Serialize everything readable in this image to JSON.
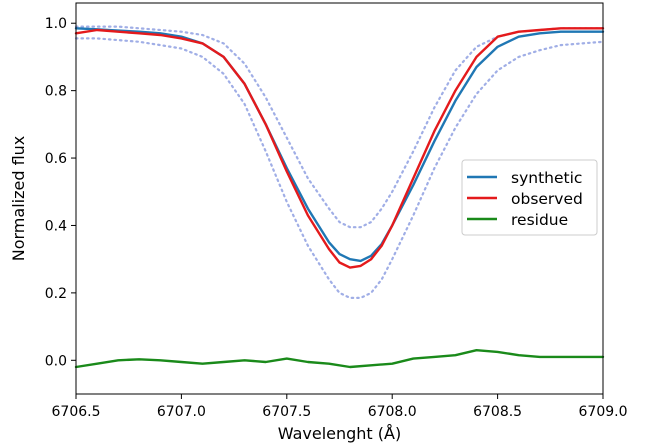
{
  "chart_data": {
    "type": "line",
    "xlabel": "Wavelenght (Å)",
    "ylabel": "Normalized flux",
    "xlim": [
      6706.5,
      6709.0
    ],
    "ylim": [
      -0.1,
      1.06
    ],
    "xticks": [
      6706.5,
      6707.0,
      6707.5,
      6708.0,
      6708.5,
      6709.0
    ],
    "xtick_labels": [
      "6706.5",
      "6707.0",
      "6707.5",
      "6708.0",
      "6708.5",
      "6709.0"
    ],
    "yticks": [
      0.0,
      0.2,
      0.4,
      0.6,
      0.8,
      1.0
    ],
    "ytick_labels": [
      "0.0",
      "0.2",
      "0.4",
      "0.6",
      "0.8",
      "1.0"
    ],
    "grid": false,
    "legend": {
      "position": "right",
      "entries": [
        {
          "label": "synthetic",
          "color": "#1f77b4"
        },
        {
          "label": "observed",
          "color": "#e41a1c"
        },
        {
          "label": "residue",
          "color": "#1a8a1a"
        }
      ]
    },
    "series": [
      {
        "name": "synthetic",
        "color": "#1f77b4",
        "style": "solid",
        "x": [
          6706.5,
          6706.6,
          6706.7,
          6706.8,
          6706.9,
          6707.0,
          6707.1,
          6707.2,
          6707.3,
          6707.4,
          6707.5,
          6707.6,
          6707.7,
          6707.75,
          6707.8,
          6707.85,
          6707.9,
          6707.95,
          6708.0,
          6708.1,
          6708.2,
          6708.3,
          6708.4,
          6708.5,
          6708.6,
          6708.7,
          6708.8,
          6708.9,
          6709.0
        ],
        "y": [
          0.985,
          0.982,
          0.978,
          0.975,
          0.97,
          0.96,
          0.94,
          0.9,
          0.82,
          0.7,
          0.57,
          0.45,
          0.35,
          0.315,
          0.3,
          0.295,
          0.31,
          0.345,
          0.4,
          0.52,
          0.65,
          0.77,
          0.87,
          0.93,
          0.96,
          0.97,
          0.975,
          0.975,
          0.975
        ]
      },
      {
        "name": "observed",
        "color": "#e41a1c",
        "style": "solid",
        "x": [
          6706.5,
          6706.6,
          6706.7,
          6706.8,
          6706.9,
          6707.0,
          6707.1,
          6707.2,
          6707.3,
          6707.4,
          6707.5,
          6707.6,
          6707.7,
          6707.75,
          6707.8,
          6707.85,
          6707.9,
          6707.95,
          6708.0,
          6708.1,
          6708.2,
          6708.3,
          6708.4,
          6708.5,
          6708.6,
          6708.7,
          6708.8,
          6708.9,
          6709.0
        ],
        "y": [
          0.97,
          0.98,
          0.975,
          0.97,
          0.965,
          0.955,
          0.94,
          0.9,
          0.82,
          0.7,
          0.56,
          0.43,
          0.33,
          0.29,
          0.275,
          0.28,
          0.3,
          0.34,
          0.4,
          0.54,
          0.68,
          0.8,
          0.9,
          0.96,
          0.975,
          0.98,
          0.985,
          0.985,
          0.985
        ]
      },
      {
        "name": "",
        "color": "#a0aee6",
        "style": "dotted",
        "x": [
          6706.5,
          6706.6,
          6706.7,
          6706.8,
          6706.9,
          6707.0,
          6707.1,
          6707.2,
          6707.3,
          6707.4,
          6707.5,
          6707.6,
          6707.7,
          6707.75,
          6707.8,
          6707.85,
          6707.9,
          6707.95,
          6708.0,
          6708.1,
          6708.2,
          6708.3,
          6708.4,
          6708.5,
          6708.6,
          6708.7,
          6708.8,
          6708.9,
          6709.0
        ],
        "y": [
          0.99,
          0.99,
          0.99,
          0.985,
          0.98,
          0.975,
          0.965,
          0.94,
          0.88,
          0.78,
          0.66,
          0.54,
          0.45,
          0.41,
          0.395,
          0.395,
          0.41,
          0.45,
          0.5,
          0.62,
          0.75,
          0.86,
          0.93,
          0.96,
          0.975,
          0.98,
          0.985,
          0.985,
          0.985
        ]
      },
      {
        "name": "",
        "color": "#a0aee6",
        "style": "dotted",
        "x": [
          6706.5,
          6706.6,
          6706.7,
          6706.8,
          6706.9,
          6707.0,
          6707.1,
          6707.2,
          6707.3,
          6707.4,
          6707.5,
          6707.6,
          6707.7,
          6707.75,
          6707.8,
          6707.85,
          6707.9,
          6707.95,
          6708.0,
          6708.1,
          6708.2,
          6708.3,
          6708.4,
          6708.5,
          6708.6,
          6708.7,
          6708.8,
          6708.9,
          6709.0
        ],
        "y": [
          0.955,
          0.955,
          0.95,
          0.945,
          0.935,
          0.925,
          0.9,
          0.85,
          0.76,
          0.62,
          0.47,
          0.34,
          0.24,
          0.2,
          0.185,
          0.185,
          0.2,
          0.24,
          0.3,
          0.43,
          0.57,
          0.69,
          0.79,
          0.86,
          0.9,
          0.92,
          0.935,
          0.94,
          0.945
        ]
      },
      {
        "name": "residue",
        "color": "#1a8a1a",
        "style": "solid",
        "x": [
          6706.5,
          6706.6,
          6706.7,
          6706.8,
          6706.9,
          6707.0,
          6707.1,
          6707.2,
          6707.3,
          6707.4,
          6707.5,
          6707.6,
          6707.7,
          6707.8,
          6707.9,
          6708.0,
          6708.1,
          6708.2,
          6708.3,
          6708.4,
          6708.5,
          6708.6,
          6708.7,
          6708.8,
          6708.9,
          6709.0
        ],
        "y": [
          -0.02,
          -0.01,
          0.0,
          0.003,
          0.0,
          -0.005,
          -0.01,
          -0.005,
          0.0,
          -0.005,
          0.005,
          -0.005,
          -0.01,
          -0.02,
          -0.015,
          -0.01,
          0.005,
          0.01,
          0.015,
          0.03,
          0.025,
          0.015,
          0.01,
          0.01,
          0.01,
          0.01
        ]
      }
    ]
  }
}
